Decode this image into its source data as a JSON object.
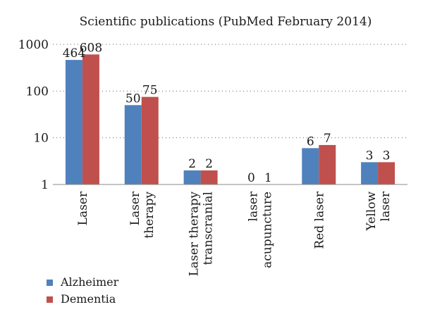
{
  "chart_data": {
    "type": "bar",
    "title": "Scientific publications (PubMed February 2014)",
    "categories": [
      [
        "Laser"
      ],
      [
        "Laser",
        "therapy"
      ],
      [
        "Laser therapy",
        "transcranial"
      ],
      [
        "laser",
        "acupuncture"
      ],
      [
        "Red laser"
      ],
      [
        "Yellow",
        "laser"
      ]
    ],
    "series": [
      {
        "name": "Alzheimer",
        "color": "#4f81bd",
        "values": [
          464,
          50,
          2,
          0,
          6,
          3
        ],
        "labels": [
          "464",
          "50",
          "2",
          "0",
          "6",
          "3"
        ]
      },
      {
        "name": "Dementia",
        "color": "#c0504d",
        "values": [
          608,
          75,
          2,
          1,
          7,
          3
        ],
        "labels": [
          "608",
          "75",
          "2",
          "1",
          "7",
          "3"
        ]
      }
    ],
    "y_scale": "log",
    "ylim": [
      1,
      1000
    ],
    "y_ticks": [
      1,
      10,
      100,
      1000
    ],
    "y_tick_labels": [
      "1",
      "10",
      "100",
      "1000"
    ],
    "grid": true,
    "legend": "bottom-left"
  }
}
